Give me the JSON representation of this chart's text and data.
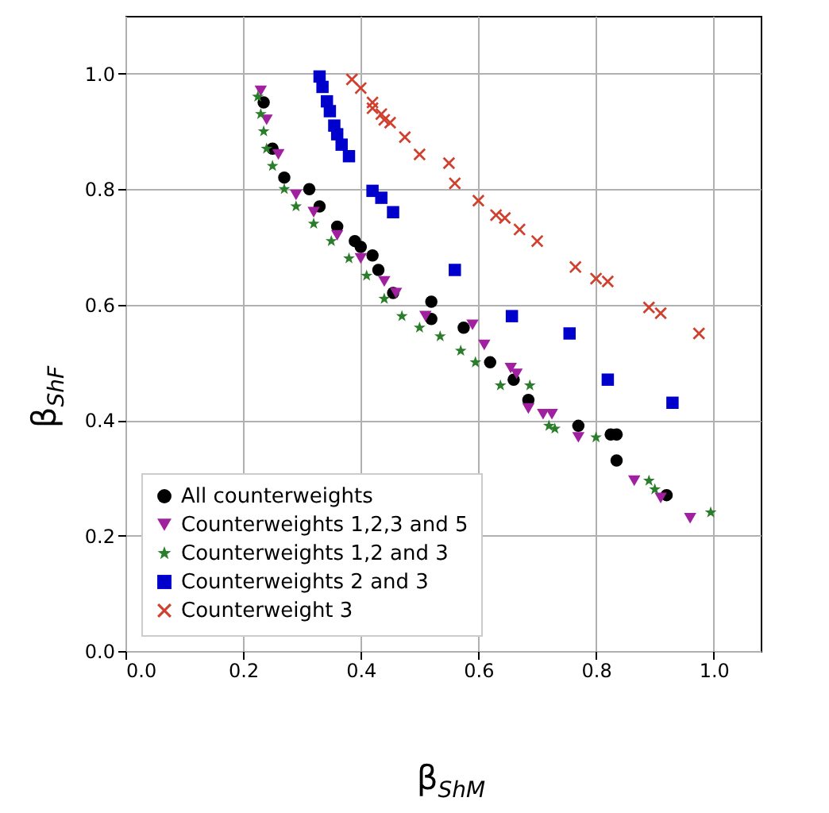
{
  "chart_data": {
    "type": "scatter",
    "xlabel": "β$_{ShM}$",
    "ylabel": "β$_{ShF}$",
    "xlim": [
      0,
      1.08
    ],
    "ylim": [
      0,
      1.1
    ],
    "xticks": [
      {
        "value": 0,
        "label": "0.0"
      },
      {
        "value": 0.2,
        "label": "0.2"
      },
      {
        "value": 0.4,
        "label": "0.4"
      },
      {
        "value": 0.6,
        "label": "0.6"
      },
      {
        "value": 0.8,
        "label": "0.8"
      },
      {
        "value": 1,
        "label": "1.0"
      }
    ],
    "yticks": [
      {
        "value": 0,
        "label": "0.0"
      },
      {
        "value": 0.2,
        "label": "0.2"
      },
      {
        "value": 0.4,
        "label": "0.4"
      },
      {
        "value": 0.6,
        "label": "0.6"
      },
      {
        "value": 0.8,
        "label": "0.8"
      },
      {
        "value": 1,
        "label": "1.0"
      }
    ],
    "grid": true,
    "legend": "bottom left",
    "series": [
      {
        "name": "All counterweights",
        "color": "#000000",
        "marker": "circle",
        "x": [
          0.235,
          0.25,
          0.27,
          0.3125,
          0.33,
          0.36,
          0.39,
          0.4,
          0.42,
          0.43,
          0.455,
          0.52,
          0.52,
          0.575,
          0.62,
          0.66,
          0.685,
          0.77,
          0.825,
          0.835,
          0.835,
          0.92
        ],
        "values": [
          0.95,
          0.87,
          0.82,
          0.8,
          0.77,
          0.735,
          0.71,
          0.7,
          0.685,
          0.66,
          0.62,
          0.605,
          0.575,
          0.56,
          0.5,
          0.47,
          0.435,
          0.39,
          0.375,
          0.375,
          0.33,
          0.27
        ]
      },
      {
        "name": "Counterweights 1,2,3 and 5",
        "color": "#a020a0",
        "marker": "triangle",
        "x": [
          0.23,
          0.24,
          0.26,
          0.29,
          0.32,
          0.36,
          0.4,
          0.44,
          0.46,
          0.51,
          0.59,
          0.61,
          0.655,
          0.665,
          0.685,
          0.71,
          0.725,
          0.77,
          0.865,
          0.91,
          0.96
        ],
        "values": [
          0.97,
          0.92,
          0.86,
          0.79,
          0.76,
          0.72,
          0.68,
          0.64,
          0.62,
          0.58,
          0.565,
          0.53,
          0.49,
          0.48,
          0.42,
          0.41,
          0.41,
          0.37,
          0.295,
          0.265,
          0.23
        ]
      },
      {
        "name": "Counterweights 1,2 and 3",
        "color": "#2a7d2a",
        "marker": "star",
        "x": [
          0.225,
          0.23,
          0.235,
          0.24,
          0.25,
          0.27,
          0.29,
          0.32,
          0.35,
          0.38,
          0.41,
          0.44,
          0.47,
          0.5,
          0.535,
          0.57,
          0.595,
          0.6375,
          0.6875,
          0.72,
          0.73,
          0.8,
          0.89,
          0.9,
          0.995
        ],
        "values": [
          0.96,
          0.93,
          0.9,
          0.87,
          0.84,
          0.8,
          0.77,
          0.74,
          0.71,
          0.68,
          0.65,
          0.61,
          0.58,
          0.56,
          0.545,
          0.52,
          0.5,
          0.46,
          0.46,
          0.39,
          0.385,
          0.37,
          0.295,
          0.28,
          0.24
        ]
      },
      {
        "name": "Counterweights 2 and 3",
        "color": "#0000cc",
        "marker": "square",
        "x": [
          0.33,
          0.335,
          0.3425,
          0.3475,
          0.355,
          0.36,
          0.3675,
          0.38,
          0.42,
          0.435,
          0.455,
          0.56,
          0.657,
          0.755,
          0.82,
          0.93
        ],
        "values": [
          0.995,
          0.977,
          0.952,
          0.935,
          0.91,
          0.895,
          0.877,
          0.857,
          0.797,
          0.785,
          0.76,
          0.66,
          0.58,
          0.55,
          0.47,
          0.43
        ]
      },
      {
        "name": "Counterweight 3",
        "color": "#d0402e",
        "marker": "cross",
        "x": [
          0.385,
          0.4,
          0.42,
          0.42,
          0.435,
          0.44,
          0.45,
          0.475,
          0.5,
          0.55,
          0.56,
          0.6,
          0.63,
          0.645,
          0.67,
          0.7,
          0.765,
          0.8,
          0.82,
          0.89,
          0.91,
          0.975
        ],
        "values": [
          0.99,
          0.975,
          0.95,
          0.94,
          0.93,
          0.92,
          0.915,
          0.89,
          0.86,
          0.845,
          0.81,
          0.78,
          0.755,
          0.75,
          0.73,
          0.71,
          0.665,
          0.645,
          0.64,
          0.595,
          0.585,
          0.55
        ]
      }
    ]
  }
}
